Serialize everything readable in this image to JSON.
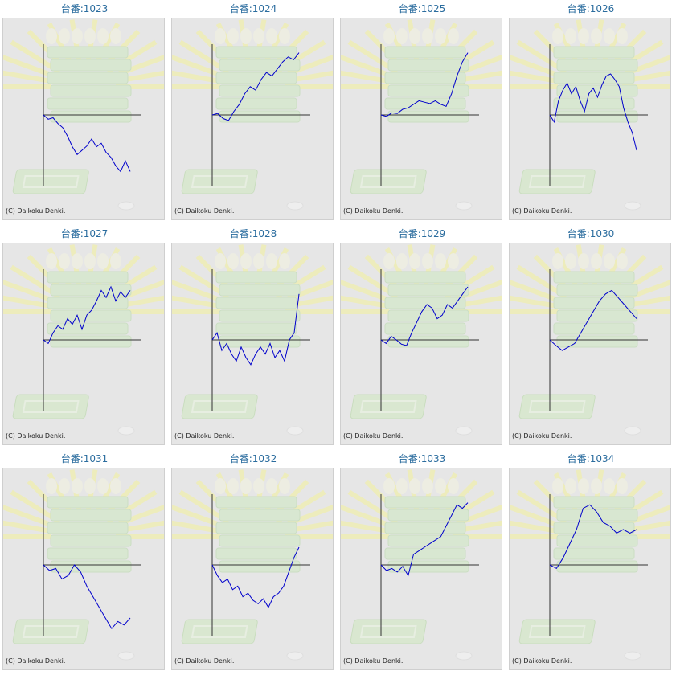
{
  "colors": {
    "title": "#2a6c9e",
    "line": "#0000cc",
    "axis": "#333333",
    "panel": "#e6e6e6"
  },
  "icons": [
    "machine-illustration-background"
  ],
  "chart_data": [
    {
      "type": "line",
      "title": "台番:1023",
      "copyright": "(C) Daikoku Denki.",
      "series": [
        {
          "values": [
            0,
            -6,
            -4,
            -12,
            -18,
            -30,
            -45,
            -56,
            -50,
            -44,
            -34,
            -45,
            -40,
            -53,
            -60,
            -72,
            -80,
            -65,
            -80
          ]
        }
      ]
    },
    {
      "type": "line",
      "title": "台番:1024",
      "copyright": "(C) Daikoku Denki.",
      "series": [
        {
          "values": [
            0,
            2,
            -5,
            -8,
            5,
            15,
            30,
            40,
            35,
            50,
            60,
            55,
            65,
            75,
            82,
            78,
            88
          ]
        }
      ]
    },
    {
      "type": "line",
      "title": "台番:1025",
      "copyright": "(C) Daikoku Denki.",
      "series": [
        {
          "values": [
            0,
            -2,
            3,
            2,
            8,
            10,
            15,
            20,
            18,
            16,
            20,
            15,
            12,
            30,
            55,
            75,
            88
          ]
        }
      ]
    },
    {
      "type": "line",
      "title": "台番:1026",
      "copyright": "(C) Daikoku Denki.",
      "series": [
        {
          "values": [
            0,
            -10,
            20,
            35,
            45,
            30,
            40,
            20,
            5,
            30,
            38,
            25,
            42,
            55,
            58,
            50,
            40,
            10,
            -10,
            -25,
            -50
          ]
        }
      ]
    },
    {
      "type": "line",
      "title": "台番:1027",
      "copyright": "(C) Daikoku Denki.",
      "series": [
        {
          "values": [
            0,
            -5,
            10,
            20,
            15,
            30,
            22,
            35,
            15,
            35,
            42,
            55,
            70,
            60,
            75,
            55,
            68,
            60,
            70
          ]
        }
      ]
    },
    {
      "type": "line",
      "title": "台番:1028",
      "copyright": "(C) Daikoku Denki.",
      "series": [
        {
          "values": [
            0,
            10,
            -15,
            -5,
            -20,
            -30,
            -10,
            -25,
            -35,
            -20,
            -10,
            -20,
            -5,
            -25,
            -15,
            -30,
            0,
            10,
            65
          ]
        }
      ]
    },
    {
      "type": "line",
      "title": "台番:1029",
      "copyright": "(C) Daikoku Denki.",
      "series": [
        {
          "values": [
            0,
            -5,
            5,
            0,
            -6,
            -8,
            10,
            25,
            40,
            50,
            45,
            30,
            35,
            50,
            45,
            55,
            65,
            75
          ]
        }
      ]
    },
    {
      "type": "line",
      "title": "台番:1030",
      "copyright": "(C) Daikoku Denki.",
      "series": [
        {
          "values": [
            0,
            -8,
            -15,
            -10,
            -5,
            10,
            25,
            40,
            55,
            65,
            70,
            60,
            50,
            40,
            30
          ]
        }
      ]
    },
    {
      "type": "line",
      "title": "台番:1031",
      "copyright": "(C) Daikoku Denki.",
      "series": [
        {
          "values": [
            0,
            -8,
            -5,
            -20,
            -15,
            0,
            -10,
            -30,
            -45,
            -60,
            -75,
            -90,
            -80,
            -85,
            -75
          ]
        }
      ]
    },
    {
      "type": "line",
      "title": "台番:1032",
      "copyright": "(C) Daikoku Denki.",
      "series": [
        {
          "values": [
            0,
            -15,
            -25,
            -20,
            -35,
            -30,
            -45,
            -40,
            -50,
            -55,
            -48,
            -60,
            -45,
            -40,
            -30,
            -10,
            10,
            25
          ]
        }
      ]
    },
    {
      "type": "line",
      "title": "台番:1033",
      "copyright": "(C) Daikoku Denki.",
      "series": [
        {
          "values": [
            0,
            -8,
            -5,
            -10,
            -2,
            -15,
            15,
            20,
            25,
            30,
            35,
            40,
            55,
            70,
            85,
            80,
            88
          ]
        }
      ]
    },
    {
      "type": "line",
      "title": "台番:1034",
      "copyright": "(C) Daikoku Denki.",
      "series": [
        {
          "values": [
            0,
            -5,
            10,
            30,
            50,
            80,
            85,
            75,
            60,
            55,
            45,
            50,
            45,
            50
          ]
        }
      ]
    }
  ]
}
